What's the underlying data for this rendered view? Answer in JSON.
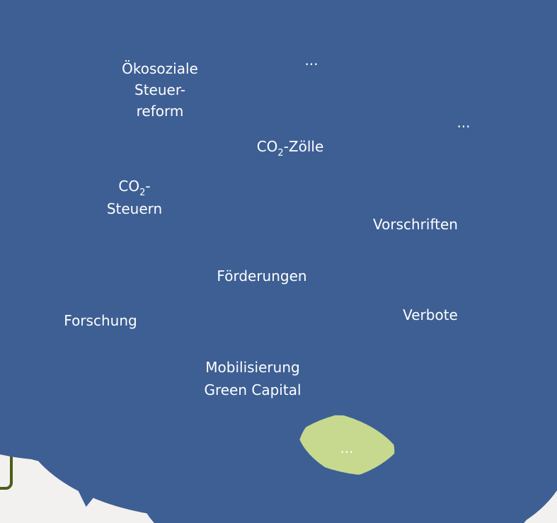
{
  "colors": {
    "blue": "#a3b8d6",
    "red": "#f08a8a",
    "green": "#c6d98f",
    "outline": "#3d5f94",
    "box_border": "#4b5e17"
  },
  "clouds": {
    "oekosoziale": {
      "line1": "Ökosoziale",
      "line2": "Steuer-",
      "line3": "reform"
    },
    "blue_dots": {
      "label": "..."
    },
    "co2_zoelle": {
      "label": "CO",
      "sub": "2",
      "rest": "-Zölle"
    },
    "co2_steuern": {
      "label": "CO",
      "sub": "2",
      "rest": "-",
      "line2": "Steuern"
    },
    "red_dots": {
      "label": "..."
    },
    "vorschriften": {
      "label": "Vorschriften"
    },
    "verbote": {
      "label": "Verbote"
    },
    "foerderungen": {
      "label": "Förderungen"
    },
    "forschung": {
      "label": "Forschung"
    },
    "mobilisierung": {
      "line1": "Mobilisierung",
      "line2": "Green Capital"
    },
    "green_dots": {
      "label": "..."
    }
  }
}
